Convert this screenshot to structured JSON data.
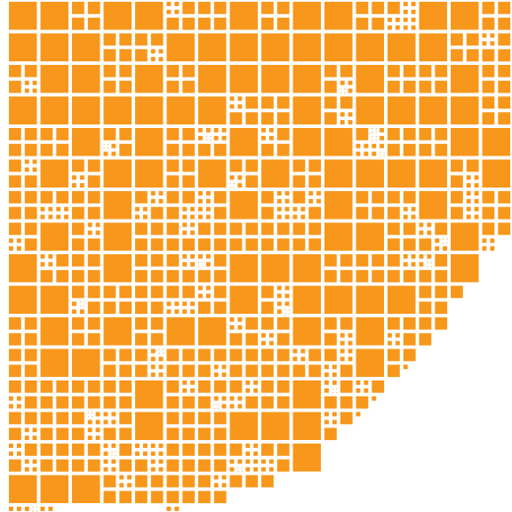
{
  "mosaic": {
    "fill_color": "#F7981D",
    "background_color": "#FFFFFF"
  }
}
